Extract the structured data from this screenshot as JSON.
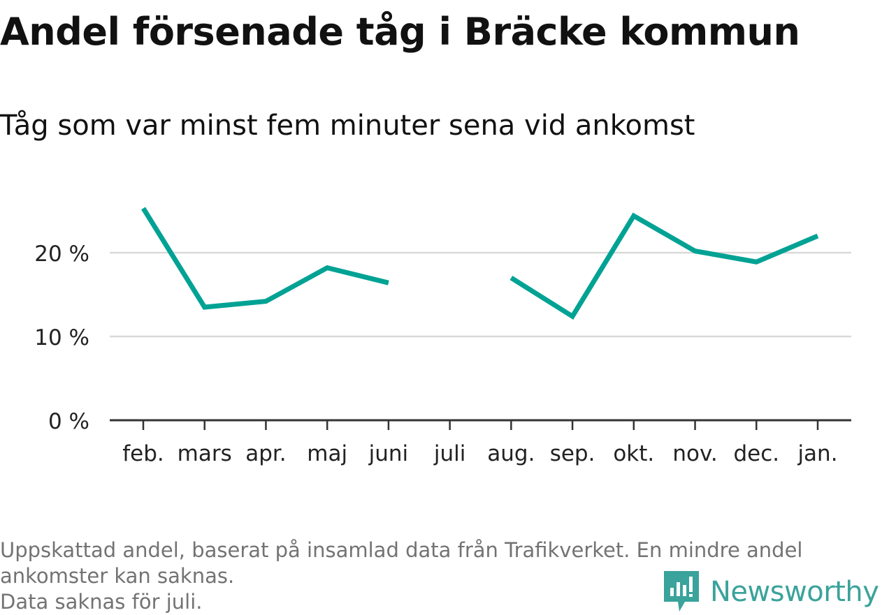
{
  "title": "Andel försenade tåg i Bräcke kommun",
  "subtitle": "Tåg som var minst fem minuter sena vid ankomst",
  "chart_data": {
    "type": "line",
    "categories": [
      "feb.",
      "mars",
      "apr.",
      "maj",
      "juni",
      "juli",
      "aug.",
      "sep.",
      "okt.",
      "nov.",
      "dec.",
      "jan."
    ],
    "series": [
      {
        "values": [
          25.3,
          13.5,
          14.2,
          18.2,
          16.4,
          null,
          17.0,
          12.4,
          24.4,
          20.2,
          18.9,
          22.0
        ]
      }
    ],
    "yticks": [
      {
        "value": 0,
        "label": "0 %"
      },
      {
        "value": 10,
        "label": "10 %"
      },
      {
        "value": 20,
        "label": "20 %"
      }
    ],
    "ylim": [
      0,
      30
    ],
    "grid": true,
    "line_color": "#00a294",
    "grid_color": "#d9d9d9",
    "axis_color": "#333333"
  },
  "footer": {
    "note_line1": "Uppskattad andel, baserat på insamlad data från Trafikverket. En mindre andel",
    "note_line2": "ankomster kan saknas.",
    "note_line3": "Data saknas för juli."
  },
  "brand": {
    "name": "Newsworthy",
    "icon": "newsworthy-logo-icon",
    "color": "#3aa39b"
  }
}
